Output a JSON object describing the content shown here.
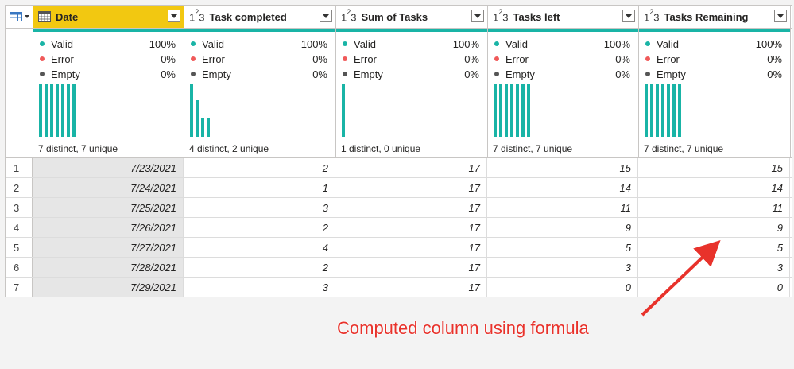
{
  "columns": [
    {
      "name": "Date",
      "type": "date",
      "selected": true,
      "valid": "100%",
      "error": "0%",
      "empty": "0%",
      "summary": "7 distinct, 7 unique",
      "hist": [
        1,
        1,
        1,
        1,
        1,
        1,
        1
      ]
    },
    {
      "name": "Task completed",
      "type": "123",
      "selected": false,
      "valid": "100%",
      "error": "0%",
      "empty": "0%",
      "summary": "4 distinct, 2 unique",
      "hist": [
        1,
        0.7,
        0.35,
        0.35
      ]
    },
    {
      "name": "Sum of Tasks",
      "type": "123",
      "selected": false,
      "valid": "100%",
      "error": "0%",
      "empty": "0%",
      "summary": "1 distinct, 0 unique",
      "hist": [
        1
      ]
    },
    {
      "name": "Tasks left",
      "type": "123",
      "selected": false,
      "valid": "100%",
      "error": "0%",
      "empty": "0%",
      "summary": "7 distinct, 7 unique",
      "hist": [
        1,
        1,
        1,
        1,
        1,
        1,
        1
      ]
    },
    {
      "name": "Tasks Remaining",
      "type": "123",
      "selected": false,
      "valid": "100%",
      "error": "0%",
      "empty": "0%",
      "summary": "7 distinct, 7 unique",
      "hist": [
        1,
        1,
        1,
        1,
        1,
        1,
        1
      ]
    }
  ],
  "labels": {
    "valid": "Valid",
    "error": "Error",
    "empty": "Empty",
    "type_123_a": "1",
    "type_123_b": "2",
    "type_123_c": "3"
  },
  "rows": [
    [
      "1",
      "7/23/2021",
      "2",
      "17",
      "15",
      "15"
    ],
    [
      "2",
      "7/24/2021",
      "1",
      "17",
      "14",
      "14"
    ],
    [
      "3",
      "7/25/2021",
      "3",
      "17",
      "11",
      "11"
    ],
    [
      "4",
      "7/26/2021",
      "2",
      "17",
      "9",
      "9"
    ],
    [
      "5",
      "7/27/2021",
      "4",
      "17",
      "5",
      "5"
    ],
    [
      "6",
      "7/28/2021",
      "2",
      "17",
      "3",
      "3"
    ],
    [
      "7",
      "7/29/2021",
      "3",
      "17",
      "0",
      "0"
    ]
  ],
  "annotation": "Computed column using formula",
  "colors": {
    "valid": "#19b4a6",
    "error": "#f05a5a",
    "empty": "#555555",
    "accent": "#f2c811",
    "annotation": "#e8322b"
  }
}
